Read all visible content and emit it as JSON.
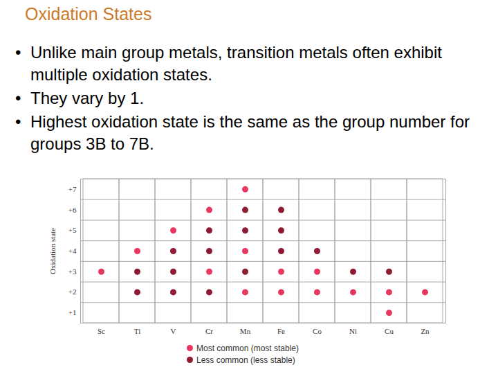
{
  "slide": {
    "title": "Oxidation States",
    "bullets": [
      "Unlike main group metals, transition metals often exhibit multiple oxidation states.",
      "They vary by 1.",
      "Highest oxidation state is the same as the group number for groups 3B to 7B."
    ]
  },
  "chart_data": {
    "type": "scatter",
    "y_label": "Oxidation state",
    "categories": [
      "Sc",
      "Ti",
      "V",
      "Cr",
      "Mn",
      "Fe",
      "Co",
      "Ni",
      "Cu",
      "Zn"
    ],
    "ylim": [
      0.5,
      7.5
    ],
    "yticks": [
      {
        "value": 1,
        "label": "+1"
      },
      {
        "value": 2,
        "label": "+2"
      },
      {
        "value": 3,
        "label": "+3"
      },
      {
        "value": 4,
        "label": "+4"
      },
      {
        "value": 5,
        "label": "+5"
      },
      {
        "value": 6,
        "label": "+6"
      },
      {
        "value": 7,
        "label": "+7"
      }
    ],
    "grid": true,
    "legend": "bottom",
    "marker": "circle",
    "series": [
      {
        "name": "Most common (most stable)",
        "color": "#e8375e",
        "x": [
          "Sc",
          "Ti",
          "V",
          "Cr",
          "Cr",
          "Mn",
          "Mn",
          "Mn",
          "Fe",
          "Fe",
          "Co",
          "Co",
          "Ni",
          "Cu",
          "Cu",
          "Zn"
        ],
        "values": [
          3,
          4,
          5,
          6,
          3,
          7,
          4,
          2,
          3,
          2,
          3,
          2,
          2,
          2,
          1,
          2
        ]
      },
      {
        "name": "Less common (less stable)",
        "color": "#8e1a33",
        "x": [
          "Ti",
          "Ti",
          "V",
          "V",
          "V",
          "Cr",
          "Cr",
          "Cr",
          "Mn",
          "Mn",
          "Mn",
          "Fe",
          "Fe",
          "Fe",
          "Co",
          "Ni",
          "Cu"
        ],
        "values": [
          3,
          2,
          4,
          3,
          2,
          5,
          4,
          2,
          6,
          5,
          3,
          6,
          5,
          4,
          4,
          3,
          3
        ]
      }
    ]
  }
}
